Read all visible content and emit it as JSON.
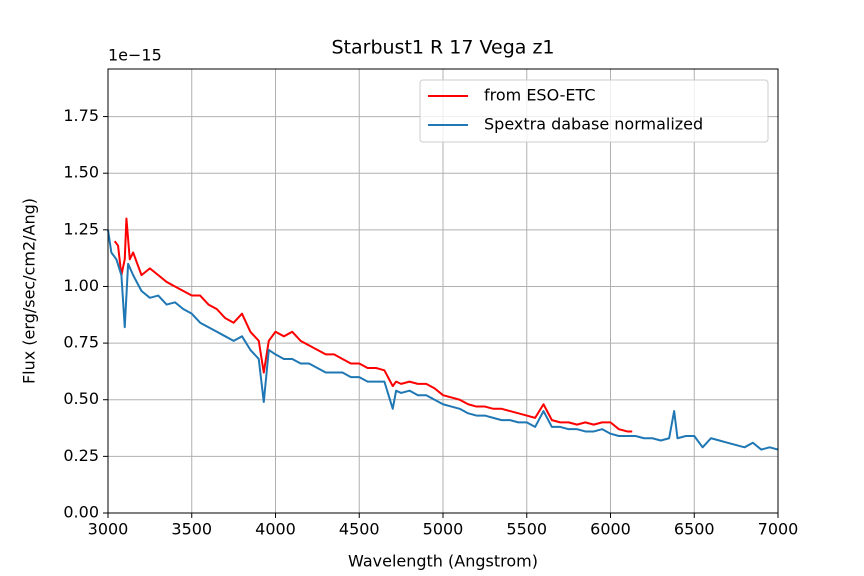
{
  "chart_data": {
    "type": "line",
    "title": "Starbust1 R 17 Vega z1",
    "xlabel": "Wavelength (Angstrom)",
    "ylabel": "Flux (erg/sec/cm2/Ang)",
    "y_offset_text": "1e−15",
    "xlim": [
      3000,
      7000
    ],
    "ylim": [
      0,
      1.96
    ],
    "xticks": [
      3000,
      3500,
      4000,
      4500,
      5000,
      5500,
      6000,
      6500,
      7000
    ],
    "yticks": [
      {
        "value": 0,
        "label": "0.00"
      },
      0.25,
      {
        "value": 0.5,
        "label": "0.50"
      },
      0.75,
      {
        "value": 1,
        "label": "1.00"
      },
      1.25,
      {
        "value": 1.5,
        "label": "1.50"
      },
      1.75
    ],
    "grid": true,
    "legend": "upper right",
    "series": [
      {
        "name": "from ESO-ETC",
        "color": "#ff0000",
        "x": [
          3040,
          3060,
          3080,
          3100,
          3110,
          3130,
          3150,
          3200,
          3250,
          3300,
          3350,
          3400,
          3450,
          3500,
          3550,
          3600,
          3650,
          3700,
          3750,
          3800,
          3850,
          3900,
          3930,
          3960,
          4000,
          4050,
          4100,
          4150,
          4200,
          4250,
          4300,
          4350,
          4400,
          4450,
          4500,
          4550,
          4600,
          4650,
          4700,
          4720,
          4750,
          4800,
          4850,
          4900,
          4950,
          5000,
          5050,
          5100,
          5150,
          5200,
          5250,
          5300,
          5350,
          5400,
          5450,
          5500,
          5550,
          5600,
          5650,
          5700,
          5750,
          5800,
          5850,
          5900,
          5950,
          6000,
          6050,
          6100,
          6130
        ],
        "values": [
          1.2,
          1.18,
          1.05,
          1.12,
          1.3,
          1.12,
          1.15,
          1.05,
          1.08,
          1.05,
          1.02,
          1.0,
          0.98,
          0.96,
          0.96,
          0.92,
          0.9,
          0.86,
          0.84,
          0.88,
          0.8,
          0.76,
          0.62,
          0.76,
          0.8,
          0.78,
          0.8,
          0.76,
          0.74,
          0.72,
          0.7,
          0.7,
          0.68,
          0.66,
          0.66,
          0.64,
          0.64,
          0.63,
          0.56,
          0.58,
          0.57,
          0.58,
          0.57,
          0.57,
          0.55,
          0.52,
          0.51,
          0.5,
          0.48,
          0.47,
          0.47,
          0.46,
          0.46,
          0.45,
          0.44,
          0.43,
          0.42,
          0.48,
          0.41,
          0.4,
          0.4,
          0.39,
          0.4,
          0.39,
          0.4,
          0.4,
          0.37,
          0.36,
          0.36
        ]
      },
      {
        "name": "Spextra dabase normalized",
        "color": "#1f77b4",
        "x": [
          3000,
          3020,
          3050,
          3080,
          3100,
          3120,
          3150,
          3200,
          3250,
          3300,
          3350,
          3400,
          3450,
          3500,
          3550,
          3600,
          3650,
          3700,
          3750,
          3800,
          3850,
          3900,
          3930,
          3960,
          4000,
          4050,
          4100,
          4150,
          4200,
          4250,
          4300,
          4350,
          4400,
          4450,
          4500,
          4550,
          4600,
          4650,
          4700,
          4720,
          4750,
          4800,
          4850,
          4900,
          4950,
          5000,
          5050,
          5100,
          5150,
          5200,
          5250,
          5300,
          5350,
          5400,
          5450,
          5500,
          5550,
          5600,
          5650,
          5700,
          5750,
          5800,
          5850,
          5900,
          5950,
          6000,
          6050,
          6100,
          6150,
          6200,
          6250,
          6300,
          6350,
          6380,
          6400,
          6450,
          6500,
          6550,
          6600,
          6650,
          6700,
          6750,
          6800,
          6850,
          6900,
          6950,
          7000
        ],
        "values": [
          1.25,
          1.15,
          1.12,
          1.05,
          0.82,
          1.1,
          1.05,
          0.98,
          0.95,
          0.96,
          0.92,
          0.93,
          0.9,
          0.88,
          0.84,
          0.82,
          0.8,
          0.78,
          0.76,
          0.78,
          0.72,
          0.68,
          0.49,
          0.72,
          0.7,
          0.68,
          0.68,
          0.66,
          0.66,
          0.64,
          0.62,
          0.62,
          0.62,
          0.6,
          0.6,
          0.58,
          0.58,
          0.58,
          0.46,
          0.54,
          0.53,
          0.54,
          0.52,
          0.52,
          0.5,
          0.48,
          0.47,
          0.46,
          0.44,
          0.43,
          0.43,
          0.42,
          0.41,
          0.41,
          0.4,
          0.4,
          0.38,
          0.45,
          0.38,
          0.38,
          0.37,
          0.37,
          0.36,
          0.36,
          0.37,
          0.35,
          0.34,
          0.34,
          0.34,
          0.33,
          0.33,
          0.32,
          0.33,
          0.45,
          0.33,
          0.34,
          0.34,
          0.29,
          0.33,
          0.32,
          0.31,
          0.3,
          0.29,
          0.31,
          0.28,
          0.29,
          0.28
        ]
      }
    ]
  }
}
